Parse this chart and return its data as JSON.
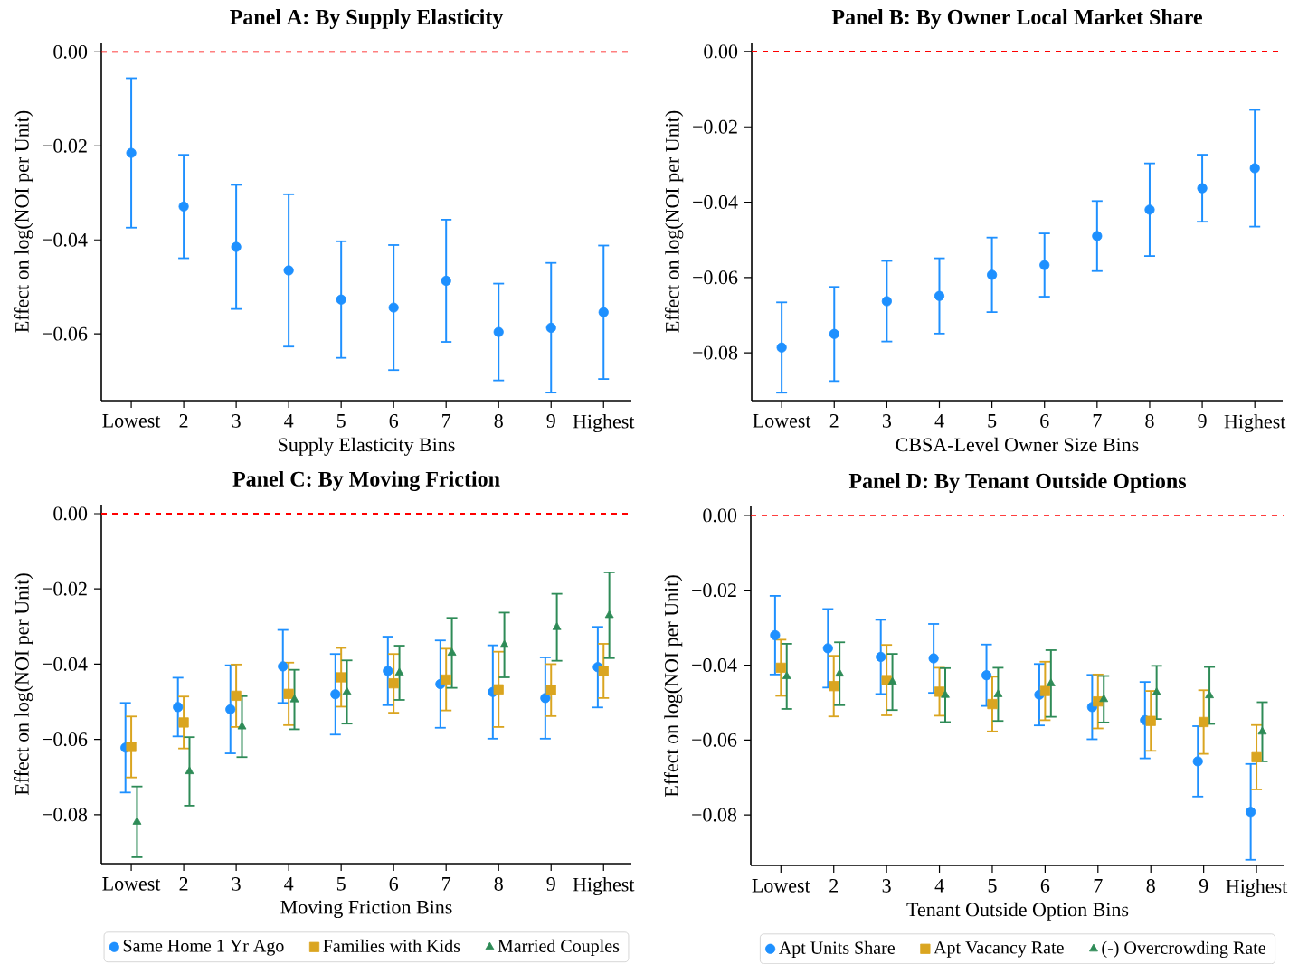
{
  "chart_data": [
    {
      "type": "scatter",
      "title": "Panel A: By Supply Elasticity",
      "xlabel": "Supply Elasticity Bins",
      "ylabel": "Effect on log(NOI per Unit)",
      "categories": [
        "Lowest",
        "2",
        "3",
        "4",
        "5",
        "6",
        "7",
        "8",
        "9",
        "Highest"
      ],
      "series": [
        {
          "color": "#1e90ff",
          "marker": "circle",
          "values": [
            -0.0215,
            -0.0329,
            -0.0415,
            -0.0465,
            -0.0527,
            -0.0544,
            -0.0487,
            -0.0596,
            -0.0587,
            -0.0554
          ],
          "errors": [
            0.0159,
            0.011,
            0.0132,
            0.0162,
            0.0124,
            0.0133,
            0.013,
            0.0103,
            0.0138,
            0.0142
          ]
        }
      ],
      "ylim": [
        -0.0742,
        0.002
      ],
      "yticks": [
        {
          "value": 0,
          "label": "0.00"
        },
        {
          "value": -0.02,
          "label": "−0.02"
        },
        {
          "value": -0.04,
          "label": "−0.04"
        },
        {
          "value": -0.06,
          "label": "−0.06"
        }
      ],
      "ref_lines": [
        {
          "axis": "y",
          "value": 0,
          "color": "#ff0000",
          "line_style": "dashed"
        }
      ]
    },
    {
      "type": "scatter",
      "title": "Panel B: By Owner Local Market Share",
      "xlabel": "CBSA-Level Owner Size Bins",
      "ylabel": "Effect on log(NOI per Unit)",
      "categories": [
        "Lowest",
        "2",
        "3",
        "4",
        "5",
        "6",
        "7",
        "8",
        "9",
        "Highest"
      ],
      "series": [
        {
          "color": "#1e90ff",
          "marker": "circle",
          "values": [
            -0.0786,
            -0.075,
            -0.0663,
            -0.0649,
            -0.0593,
            -0.0567,
            -0.049,
            -0.042,
            -0.0363,
            -0.031
          ],
          "errors": [
            0.012,
            0.0125,
            0.0107,
            0.01,
            0.0099,
            0.0084,
            0.0093,
            0.0123,
            0.0089,
            0.0155
          ]
        }
      ],
      "ylim": [
        -0.0927,
        0.0024
      ],
      "yticks": [
        {
          "value": 0,
          "label": "0.00"
        },
        {
          "value": -0.02,
          "label": "−0.02"
        },
        {
          "value": -0.04,
          "label": "−0.04"
        },
        {
          "value": -0.06,
          "label": "−0.06"
        },
        {
          "value": -0.08,
          "label": "−0.08"
        }
      ],
      "ref_lines": [
        {
          "axis": "y",
          "value": 0,
          "color": "#ff0000",
          "line_style": "dashed"
        }
      ]
    },
    {
      "type": "scatter",
      "title": "Panel C: By Moving Friction",
      "xlabel": "Moving Friction Bins",
      "ylabel": "Effect on log(NOI per Unit)",
      "categories": [
        "Lowest",
        "2",
        "3",
        "4",
        "5",
        "6",
        "7",
        "8",
        "9",
        "Highest"
      ],
      "series": [
        {
          "name": "Same Home 1 Yr Ago",
          "color": "#1e90ff",
          "marker": "circle",
          "values": [
            -0.0622,
            -0.0514,
            -0.052,
            -0.0406,
            -0.048,
            -0.0418,
            -0.0453,
            -0.0474,
            -0.049,
            -0.0408
          ],
          "errors": [
            0.0119,
            0.0078,
            0.0117,
            0.0097,
            0.0107,
            0.0091,
            0.0116,
            0.0124,
            0.0108,
            0.0107
          ]
        },
        {
          "name": "Families with Kids",
          "color": "#daa520",
          "marker": "square",
          "values": [
            -0.062,
            -0.0555,
            -0.0484,
            -0.0479,
            -0.0435,
            -0.0451,
            -0.0441,
            -0.0467,
            -0.0469,
            -0.0418
          ],
          "errors": [
            0.0081,
            0.0069,
            0.0083,
            0.0083,
            0.0078,
            0.0078,
            0.0082,
            0.01,
            0.0069,
            0.0072
          ]
        },
        {
          "name": "Married Couples",
          "color": "#2e8b57",
          "marker": "triangle",
          "values": [
            -0.0819,
            -0.0685,
            -0.0566,
            -0.0494,
            -0.0474,
            -0.0423,
            -0.037,
            -0.0349,
            -0.0302,
            -0.027
          ],
          "errors": [
            0.0094,
            0.0091,
            0.0081,
            0.0079,
            0.0084,
            0.0072,
            0.0093,
            0.0086,
            0.0089,
            0.0114
          ]
        }
      ],
      "ylim": [
        -0.093,
        0.0024
      ],
      "yticks": [
        {
          "value": 0,
          "label": "0.00"
        },
        {
          "value": -0.02,
          "label": "−0.02"
        },
        {
          "value": -0.04,
          "label": "−0.04"
        },
        {
          "value": -0.06,
          "label": "−0.06"
        },
        {
          "value": -0.08,
          "label": "−0.08"
        }
      ],
      "ref_lines": [
        {
          "axis": "y",
          "value": 0,
          "color": "#ff0000",
          "line_style": "dashed"
        }
      ],
      "legend": "bottom"
    },
    {
      "type": "scatter",
      "title": "Panel D: By Tenant Outside Options",
      "xlabel": "Tenant Outside Option Bins",
      "ylabel": "Effect on log(NOI per Unit)",
      "categories": [
        "Lowest",
        "2",
        "3",
        "4",
        "5",
        "6",
        "7",
        "8",
        "9",
        "Highest"
      ],
      "series": [
        {
          "name": "Apt Units Share",
          "color": "#1e90ff",
          "marker": "circle",
          "values": [
            -0.032,
            -0.0355,
            -0.0378,
            -0.0382,
            -0.0427,
            -0.0479,
            -0.0512,
            -0.0547,
            -0.0657,
            -0.0792
          ],
          "errors": [
            0.0105,
            0.0105,
            0.0099,
            0.0092,
            0.0082,
            0.0082,
            0.0086,
            0.0102,
            0.0094,
            0.0128
          ]
        },
        {
          "name": "Apt Vacancy Rate",
          "color": "#daa520",
          "marker": "square",
          "values": [
            -0.0407,
            -0.0456,
            -0.044,
            -0.0471,
            -0.0504,
            -0.0469,
            -0.0497,
            -0.0549,
            -0.0552,
            -0.0646
          ],
          "errors": [
            0.0075,
            0.0081,
            0.0094,
            0.0064,
            0.0073,
            0.0078,
            0.0072,
            0.008,
            0.0085,
            0.0086
          ]
        },
        {
          "name": "(-) Overcrowding Rate",
          "color": "#2e8b57",
          "marker": "triangle",
          "values": [
            -0.043,
            -0.0423,
            -0.0445,
            -0.048,
            -0.0478,
            -0.0449,
            -0.0491,
            -0.0473,
            -0.0481,
            -0.0578
          ],
          "errors": [
            0.0087,
            0.0084,
            0.0075,
            0.0072,
            0.0071,
            0.0089,
            0.0062,
            0.0071,
            0.0076,
            0.0079
          ]
        }
      ],
      "ylim": [
        -0.0935,
        0.0024
      ],
      "yticks": [
        {
          "value": 0,
          "label": "0.00"
        },
        {
          "value": -0.02,
          "label": "−0.02"
        },
        {
          "value": -0.04,
          "label": "−0.04"
        },
        {
          "value": -0.06,
          "label": "−0.06"
        },
        {
          "value": -0.08,
          "label": "−0.08"
        }
      ],
      "ref_lines": [
        {
          "axis": "y",
          "value": 0,
          "color": "#ff0000",
          "line_style": "dashed"
        }
      ],
      "legend": "bottom"
    }
  ]
}
